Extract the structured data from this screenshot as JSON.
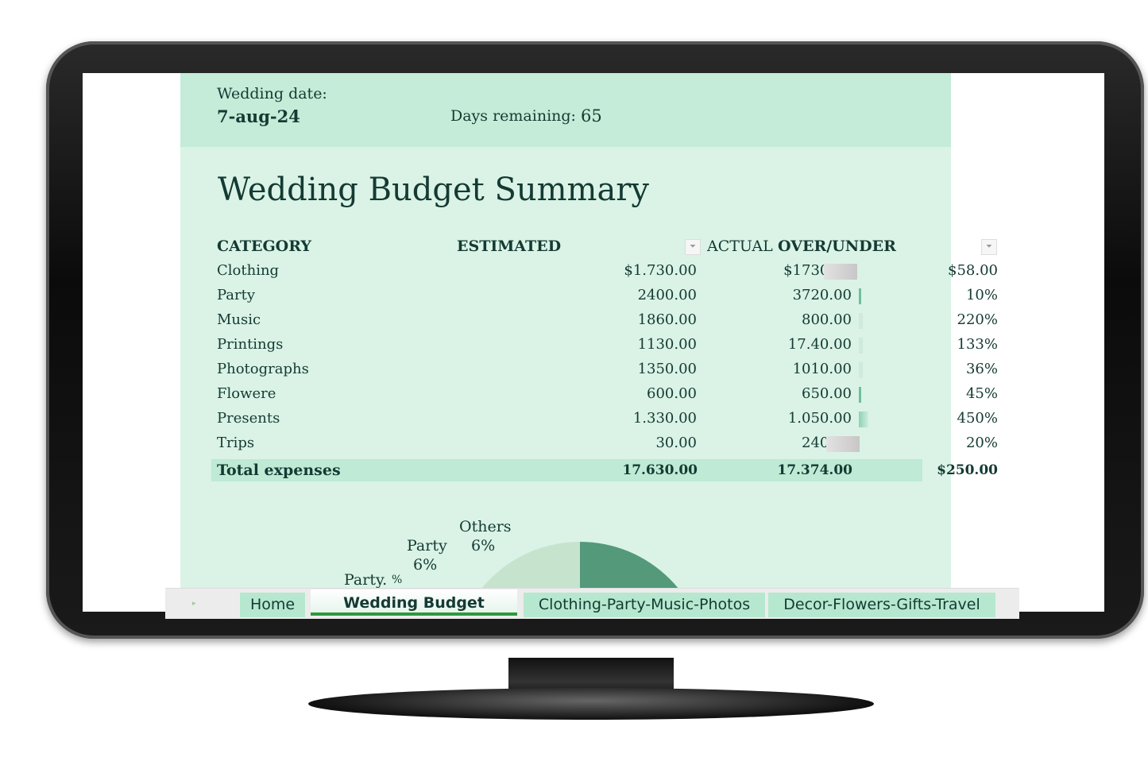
{
  "header": {
    "wedding_date_label": "Wedding date:",
    "wedding_date": "7-aug-24",
    "days_remaining_label": "Days remaining:",
    "days_remaining": "65"
  },
  "title": "Wedding Budget Summary",
  "table": {
    "columns": [
      "CATEGORY",
      "ESTIMATED",
      "ACTUAL",
      "OVER/UNDER"
    ],
    "rows": [
      {
        "category": "Clothing",
        "estimated": "$1.730.00",
        "actual": "$1730.00",
        "over_under": "$58.00",
        "bar": "gray"
      },
      {
        "category": "Party",
        "estimated": "2400.00",
        "actual": "3720.00",
        "over_under": "10%",
        "bar": "green"
      },
      {
        "category": "Music",
        "estimated": "1860.00",
        "actual": "800.00",
        "over_under": "220%",
        "bar": "light"
      },
      {
        "category": "Printings",
        "estimated": "1130.00",
        "actual": "17.40.00",
        "over_under": "133%",
        "bar": "light"
      },
      {
        "category": "Photographs",
        "estimated": "1350.00",
        "actual": "1010.00",
        "over_under": "36%",
        "bar": "light"
      },
      {
        "category": "Flowere",
        "estimated": "600.00",
        "actual": "650.00",
        "over_under": "45%",
        "bar": "green"
      },
      {
        "category": "Presents",
        "estimated": "1.330.00",
        "actual": "1.050.00",
        "over_under": "450%",
        "bar": "green"
      },
      {
        "category": "Trips",
        "estimated": "30.00",
        "actual": "240.00",
        "over_under": "20%",
        "bar": "gray"
      }
    ],
    "total": {
      "label": "Total expenses",
      "estimated": "17.630.00",
      "actual": "17.374.00",
      "over_under": "$250.00"
    }
  },
  "pie": {
    "labels": [
      {
        "name": "Others",
        "pct": "6%"
      },
      {
        "name": "Party",
        "pct": "6%"
      },
      {
        "name": "Party.",
        "pct": "%"
      }
    ],
    "colors": {
      "dark": "#54997a",
      "light": "#c6e3cd"
    }
  },
  "tabs": [
    {
      "label": "Home",
      "active": false
    },
    {
      "label": "Wedding Budget",
      "active": true
    },
    {
      "label": "Clothing-Party-Music-Photos",
      "active": false
    },
    {
      "label": "Decor-Flowers-Gifts-Travel",
      "active": false
    }
  ]
}
